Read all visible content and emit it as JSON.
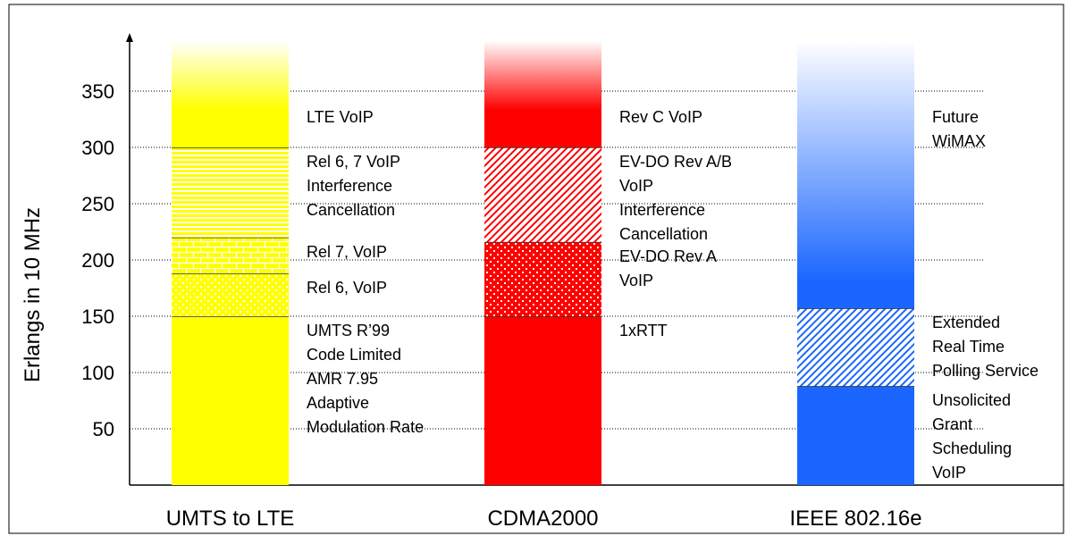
{
  "chart_data": {
    "type": "stacked-bar",
    "y_label": "Erlangs in 10 MHz",
    "ylim": [
      0,
      400
    ],
    "yticks": [
      50,
      100,
      150,
      200,
      250,
      300,
      350
    ],
    "grid": true,
    "categories": [
      "UMTS to LTE",
      "CDMA2000",
      "IEEE 802.16e"
    ],
    "bars": [
      {
        "color": "#ffff00",
        "segments": [
          {
            "label": [
              "UMTS R’99",
              "Code Limited",
              "AMR 7.95",
              "Adaptive",
              "Modulation Rate"
            ],
            "value": 150,
            "fill": "solid"
          },
          {
            "label": [
              "Rel 6, VoIP"
            ],
            "value": 38,
            "fill": "dots"
          },
          {
            "label": [
              "Rel 7, VoIP"
            ],
            "value": 32,
            "fill": "brick"
          },
          {
            "label": [
              "Rel 6, 7 VoIP",
              "Interference",
              "Cancellation"
            ],
            "value": 80,
            "fill": "hstripe"
          },
          {
            "label": [
              "LTE VoIP"
            ],
            "value": 95,
            "fill": "fade"
          }
        ]
      },
      {
        "color": "#ff0000",
        "segments": [
          {
            "label": [
              "1xRTT"
            ],
            "value": 150,
            "fill": "solid"
          },
          {
            "label": [
              "EV-DO Rev A",
              "VoIP"
            ],
            "value": 66,
            "fill": "dots"
          },
          {
            "label": [
              "EV-DO Rev A/B",
              "VoIP",
              "Interference",
              "Cancellation"
            ],
            "value": 84,
            "fill": "hatch"
          },
          {
            "label": [
              "Rev C VoIP"
            ],
            "value": 95,
            "fill": "fade"
          }
        ]
      },
      {
        "color": "#1a66ff",
        "segments": [
          {
            "label": [
              "Unsolicited",
              "Grant",
              "Scheduling",
              "VoIP"
            ],
            "value": 88,
            "fill": "solid"
          },
          {
            "label": [
              "Extended",
              "Real Time",
              "Polling Service"
            ],
            "value": 69,
            "fill": "hatch"
          },
          {
            "label": [
              "Future",
              "WiMAX"
            ],
            "value": 238,
            "fill": "fadelong"
          }
        ]
      }
    ]
  }
}
